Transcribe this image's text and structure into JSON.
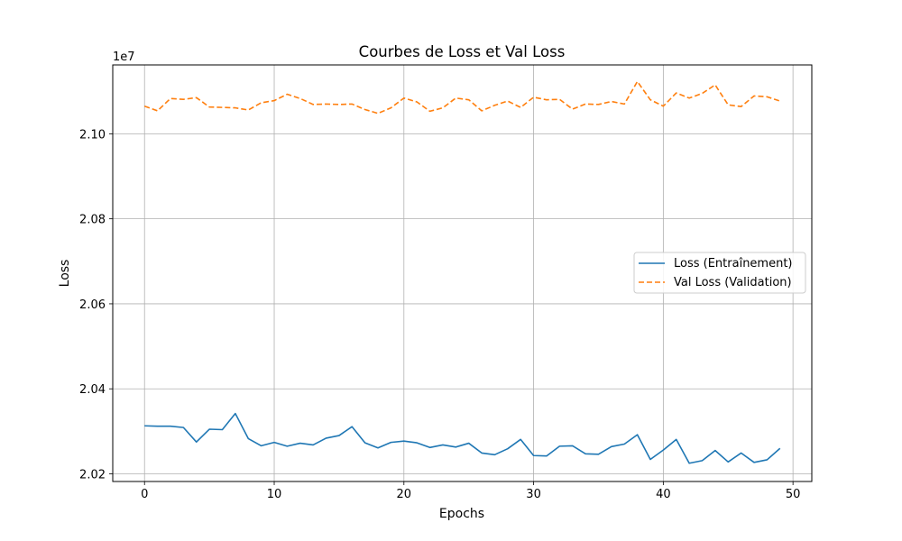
{
  "chart_data": {
    "type": "line",
    "title": "Courbes de Loss et Val Loss",
    "xlabel": "Epochs",
    "ylabel": "Loss",
    "y_offset_label": "1e7",
    "xlim": [
      -2.45,
      51.45
    ],
    "ylim": [
      20182000,
      21162000
    ],
    "xticks": [
      0,
      10,
      20,
      30,
      40,
      50
    ],
    "yticks": [
      20200000,
      20400000,
      20600000,
      20800000,
      21000000
    ],
    "ytick_labels": [
      "2.02",
      "2.04",
      "2.06",
      "2.08",
      "2.10"
    ],
    "grid": true,
    "legend_position": "center-right",
    "series": [
      {
        "name": "Loss (Entraînement)",
        "color": "#1f77b4",
        "style": "solid",
        "x": [
          0,
          1,
          2,
          3,
          4,
          5,
          6,
          7,
          8,
          9,
          10,
          11,
          12,
          13,
          14,
          15,
          16,
          17,
          18,
          19,
          20,
          21,
          22,
          23,
          24,
          25,
          26,
          27,
          28,
          29,
          30,
          31,
          32,
          33,
          34,
          35,
          36,
          37,
          38,
          39,
          40,
          41,
          42,
          43,
          44,
          45,
          46,
          47,
          48,
          49
        ],
        "values": [
          20313000,
          20312000,
          20312000,
          20309000,
          20275000,
          20305000,
          20304000,
          20342000,
          20283000,
          20266000,
          20274000,
          20265000,
          20272000,
          20268000,
          20284000,
          20290000,
          20311000,
          20273000,
          20261000,
          20274000,
          20277000,
          20273000,
          20262000,
          20268000,
          20263000,
          20272000,
          20249000,
          20245000,
          20259000,
          20281000,
          20243000,
          20242000,
          20265000,
          20266000,
          20247000,
          20246000,
          20264000,
          20270000,
          20292000,
          20234000,
          20256000,
          20281000,
          20225000,
          20231000,
          20255000,
          20228000,
          20249000,
          20227000,
          20233000,
          20260000
        ]
      },
      {
        "name": "Val Loss (Validation)",
        "color": "#ff7f0e",
        "style": "dashed",
        "x": [
          0,
          1,
          2,
          3,
          4,
          5,
          6,
          7,
          8,
          9,
          10,
          11,
          12,
          13,
          14,
          15,
          16,
          17,
          18,
          19,
          20,
          21,
          22,
          23,
          24,
          25,
          26,
          27,
          28,
          29,
          30,
          31,
          32,
          33,
          34,
          35,
          36,
          37,
          38,
          39,
          40,
          41,
          42,
          43,
          44,
          45,
          46,
          47,
          48,
          49
        ],
        "values": [
          21065000,
          21054000,
          21083000,
          21081000,
          21085000,
          21063000,
          21062000,
          21061000,
          21056000,
          21073000,
          21078000,
          21093000,
          21083000,
          21069000,
          21070000,
          21069000,
          21070000,
          21057000,
          21048000,
          21061000,
          21084000,
          21075000,
          21053000,
          21061000,
          21084000,
          21080000,
          21054000,
          21067000,
          21077000,
          21062000,
          21086000,
          21080000,
          21081000,
          21058000,
          21070000,
          21069000,
          21076000,
          21070000,
          21123000,
          21080000,
          21065000,
          21096000,
          21084000,
          21095000,
          21115000,
          21068000,
          21064000,
          21089000,
          21087000,
          21077000
        ]
      }
    ]
  }
}
